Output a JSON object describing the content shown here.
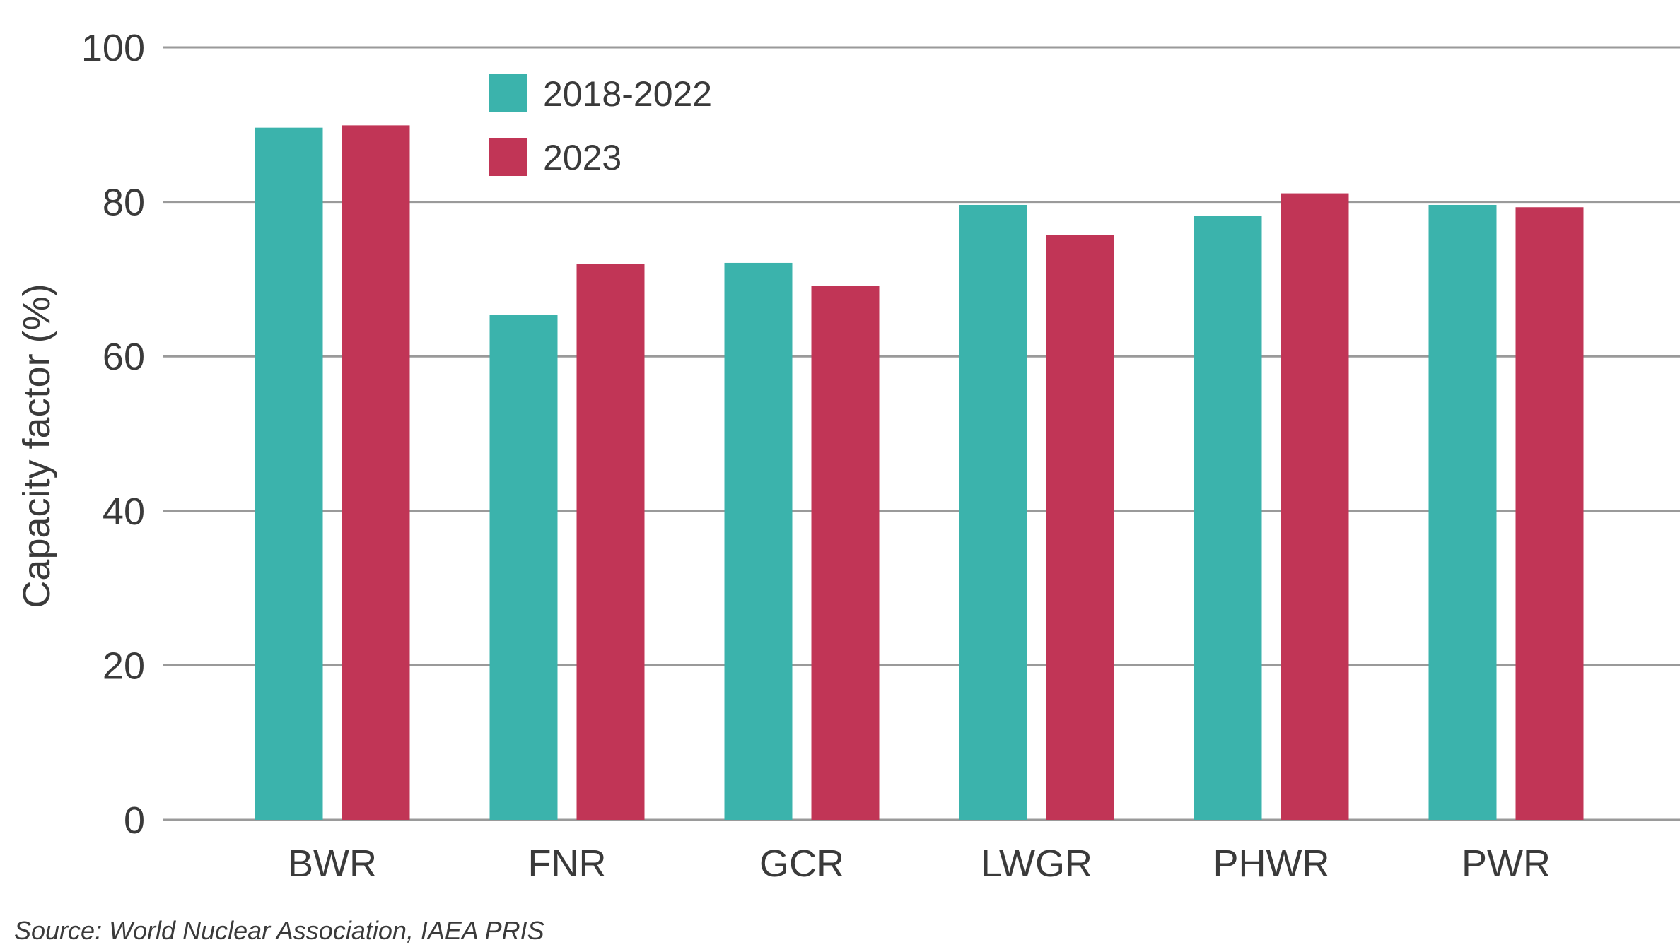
{
  "chart_data": {
    "type": "bar",
    "title": "",
    "xlabel": "",
    "ylabel": "Capacity factor (%)",
    "ylim": [
      0,
      100
    ],
    "yticks": [
      0,
      20,
      40,
      60,
      80,
      100
    ],
    "grid": "horizontal",
    "legend_position": "top-left",
    "categories": [
      "BWR",
      "FNR",
      "GCR",
      "LWGR",
      "PHWR",
      "PWR"
    ],
    "series": [
      {
        "name": "2018-2022",
        "color": "#3bb3ac",
        "values": [
          89.6,
          65.4,
          72.1,
          79.6,
          78.2,
          79.6
        ]
      },
      {
        "name": "2023",
        "color": "#c13556",
        "values": [
          89.9,
          72.0,
          69.1,
          75.7,
          81.1,
          79.3
        ]
      }
    ]
  },
  "source": "Source: World Nuclear Association, IAEA PRIS"
}
